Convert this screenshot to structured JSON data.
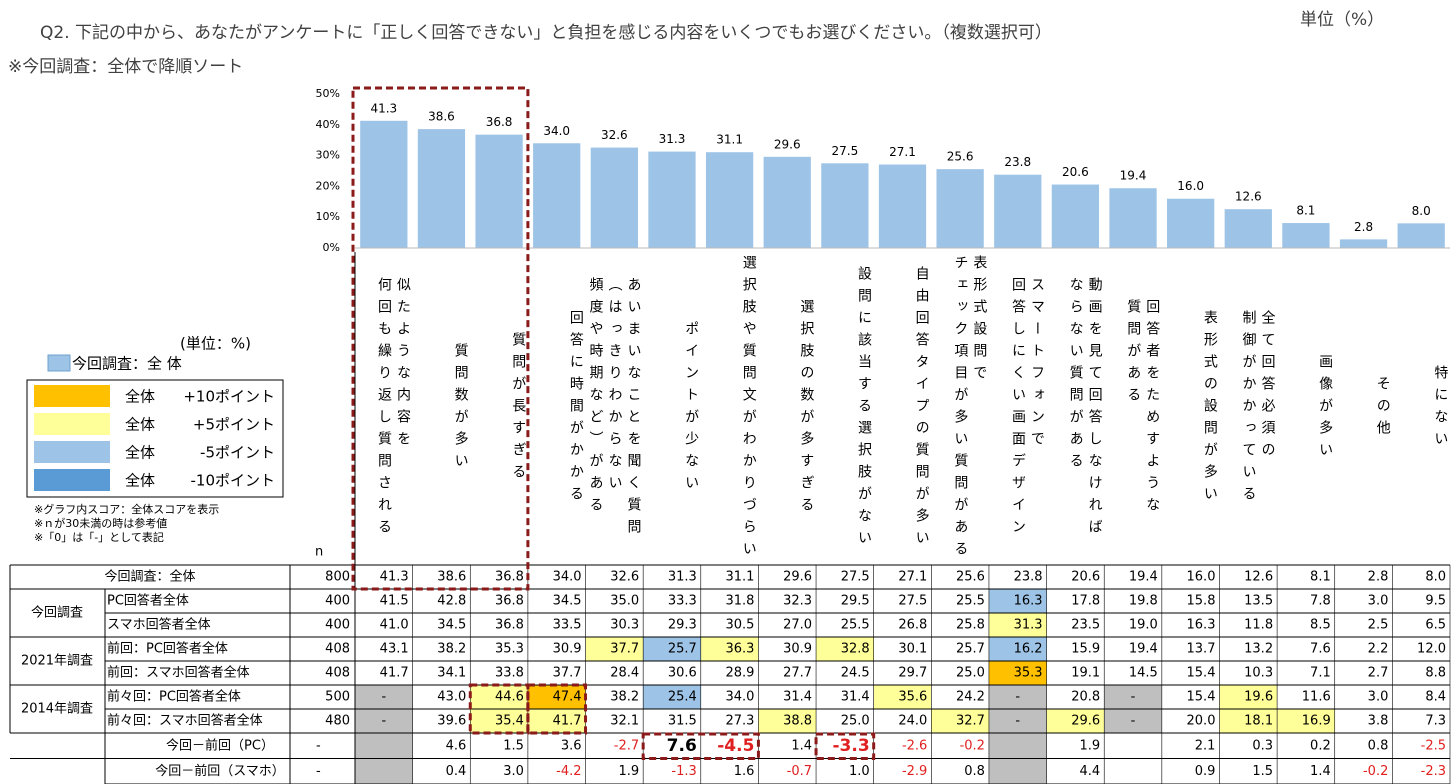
{
  "header": {
    "question": "Q2.  下記の中から、あなたがアンケートに「正しく回答できない」と負担を感じる内容をいくつでもお選びください。（複数選択可）",
    "sort_note": "※今回調査：全体で降順ソート",
    "unit": "単位（%）"
  },
  "chart_data": {
    "type": "bar",
    "color": "#9dc3e6",
    "categories": [
      "似たような内容を\n何回も繰り返し質問される",
      "質問数が多い",
      "質問が長すぎる",
      "回答に時間がかかる",
      "あいまいなことを聞く質問\n（はっきりわからない\n頻度や時期など）がある",
      "ポイントが少ない",
      "選択肢や質問文がわかりづらい",
      "選択肢の数が多すぎる",
      "設問に該当する選択肢がない",
      "自由回答タイプの質問が多い",
      "表形式設問で\nチェック項目が多い質問がある",
      "スマートフォンで\n回答しにくい画面デザイン",
      "動画を見て回答しなければ\nならない質問がある",
      "回答者をためすような\n質問がある",
      "表形式の設問が多い",
      "全て回答必須の\n制御がかかっている",
      "画像が多い",
      "その他",
      "特にない"
    ],
    "values": [
      41.3,
      38.6,
      36.8,
      34.0,
      32.6,
      31.3,
      31.1,
      29.6,
      27.5,
      27.1,
      25.6,
      23.8,
      20.6,
      19.4,
      16.0,
      12.6,
      8.1,
      2.8,
      8.0
    ],
    "value_labels": [
      "41.3",
      "38.6",
      "36.8",
      "34.0",
      "32.6",
      "31.3",
      "31.1",
      "29.6",
      "27.5",
      "27.1",
      "25.6",
      "23.8",
      "20.6",
      "19.4",
      "16.0",
      "12.6",
      "8.1",
      "2.8",
      "8.0"
    ],
    "ylim": [
      0,
      50
    ],
    "yticks": [
      {
        "value": 0,
        "label": "0%"
      },
      {
        "value": 10,
        "label": "10%"
      },
      {
        "value": 20,
        "label": "20%"
      },
      {
        "value": 30,
        "label": "30%"
      },
      {
        "value": 40,
        "label": "40%"
      },
      {
        "value": 50,
        "label": "50%"
      }
    ]
  },
  "legend": {
    "unit": "(単位：%)",
    "series_label": "今回調査：全 体",
    "items": [
      {
        "label": "全体",
        "points": "+10ポイント",
        "color": "#ffc000"
      },
      {
        "label": "全体",
        "points": "+5ポイント",
        "color": "#ffff99"
      },
      {
        "label": "全体",
        "points": "-5ポイント",
        "color": "#9dc3e6"
      },
      {
        "label": "全体",
        "points": "-10ポイント",
        "color": "#5b9bd5"
      }
    ],
    "notes": [
      "※グラフ内スコア：全体スコアを表示",
      "※ｎが30未満の時は参考値",
      "※「0」は「-」として表記"
    ]
  },
  "table": {
    "n_header": "n",
    "groups": [
      "今回調査",
      "2021年調査",
      "2014年調査"
    ],
    "rows": [
      {
        "label": "今回調査：全体",
        "n": "800",
        "cells": [
          "41.3",
          "38.6",
          "36.8",
          "34.0",
          "32.6",
          "31.3",
          "31.1",
          "29.6",
          "27.5",
          "27.1",
          "25.6",
          "23.8",
          "20.6",
          "19.4",
          "16.0",
          "12.6",
          "8.1",
          "2.8",
          "8.0"
        ],
        "fills": [
          null,
          null,
          null,
          null,
          null,
          null,
          null,
          null,
          null,
          null,
          null,
          null,
          null,
          null,
          null,
          null,
          null,
          null,
          null
        ]
      },
      {
        "label": "PC回答者全体",
        "n": "400",
        "cells": [
          "41.5",
          "42.8",
          "36.8",
          "34.5",
          "35.0",
          "33.3",
          "31.8",
          "32.3",
          "29.5",
          "27.5",
          "25.5",
          "16.3",
          "17.8",
          "19.8",
          "15.8",
          "13.5",
          "7.8",
          "3.0",
          "9.5"
        ],
        "fills": [
          null,
          null,
          null,
          null,
          null,
          null,
          null,
          null,
          null,
          null,
          null,
          "#9dc3e6",
          null,
          null,
          null,
          null,
          null,
          null,
          null
        ]
      },
      {
        "label": "スマホ回答者全体",
        "n": "400",
        "cells": [
          "41.0",
          "34.5",
          "36.8",
          "33.5",
          "30.3",
          "29.3",
          "30.5",
          "27.0",
          "25.5",
          "26.8",
          "25.8",
          "31.3",
          "23.5",
          "19.0",
          "16.3",
          "11.8",
          "8.5",
          "2.5",
          "6.5"
        ],
        "fills": [
          null,
          null,
          null,
          null,
          null,
          null,
          null,
          null,
          null,
          null,
          null,
          "#ffff99",
          null,
          null,
          null,
          null,
          null,
          null,
          null
        ]
      },
      {
        "label": "前回：PC回答者全体",
        "n": "408",
        "cells": [
          "43.1",
          "38.2",
          "35.3",
          "30.9",
          "37.7",
          "25.7",
          "36.3",
          "30.9",
          "32.8",
          "30.1",
          "25.7",
          "16.2",
          "15.9",
          "19.4",
          "13.7",
          "13.2",
          "7.6",
          "2.2",
          "12.0"
        ],
        "fills": [
          null,
          null,
          null,
          null,
          "#ffff99",
          "#9dc3e6",
          "#ffff99",
          null,
          "#ffff99",
          null,
          null,
          "#9dc3e6",
          null,
          null,
          null,
          null,
          null,
          null,
          null
        ]
      },
      {
        "label": "前回：スマホ回答者全体",
        "n": "408",
        "cells": [
          "41.7",
          "34.1",
          "33.8",
          "37.7",
          "28.4",
          "30.6",
          "28.9",
          "27.7",
          "24.5",
          "29.7",
          "25.0",
          "35.3",
          "19.1",
          "14.5",
          "15.4",
          "10.3",
          "7.1",
          "2.7",
          "8.8"
        ],
        "fills": [
          null,
          null,
          null,
          null,
          null,
          null,
          null,
          null,
          null,
          null,
          null,
          "#ffc000",
          null,
          null,
          null,
          null,
          null,
          null,
          null
        ]
      },
      {
        "label": "前々回：PC回答者全体",
        "n": "500",
        "cells": [
          "-",
          "43.0",
          "44.6",
          "47.4",
          "38.2",
          "25.4",
          "34.0",
          "31.4",
          "31.4",
          "35.6",
          "24.2",
          "-",
          "20.8",
          "-",
          "15.4",
          "19.6",
          "11.6",
          "3.0",
          "8.4"
        ],
        "fills": [
          "#bfbfbf",
          null,
          "#ffff99",
          "#ffc000",
          null,
          "#9dc3e6",
          null,
          null,
          null,
          "#ffff99",
          null,
          "#bfbfbf",
          null,
          "#bfbfbf",
          null,
          "#ffff99",
          null,
          null,
          null
        ]
      },
      {
        "label": "前々回：スマホ回答者全体",
        "n": "480",
        "cells": [
          "-",
          "39.6",
          "35.4",
          "41.7",
          "32.1",
          "31.5",
          "27.3",
          "38.8",
          "25.0",
          "24.0",
          "32.7",
          "-",
          "29.6",
          "-",
          "20.0",
          "18.1",
          "16.9",
          "3.8",
          "7.3"
        ],
        "fills": [
          "#bfbfbf",
          null,
          "#ffff99",
          "#ffff99",
          null,
          null,
          null,
          "#ffff99",
          null,
          null,
          "#ffff99",
          "#bfbfbf",
          "#ffff99",
          "#bfbfbf",
          null,
          "#ffff99",
          "#ffff99",
          null,
          null
        ]
      },
      {
        "label": "今回－前回（PC）",
        "n": "-",
        "cells": [
          null,
          "4.6",
          "1.5",
          "3.6",
          "-2.7",
          "7.6",
          "-4.5",
          "1.4",
          "-3.3",
          "-2.6",
          "-0.2",
          null,
          "1.9",
          null,
          "2.1",
          "0.3",
          "0.2",
          "0.8",
          "-2.5"
        ],
        "fills": [
          "#bfbfbf",
          null,
          null,
          null,
          null,
          null,
          null,
          null,
          null,
          null,
          null,
          "#bfbfbf",
          null,
          null,
          null,
          null,
          null,
          null,
          null
        ],
        "emphasis": [
          5,
          6,
          8
        ]
      },
      {
        "label": "今回－前回（スマホ）",
        "n": "-",
        "cells": [
          null,
          "0.4",
          "3.0",
          "-4.2",
          "1.9",
          "-1.3",
          "1.6",
          "-0.7",
          "1.0",
          "-2.9",
          "0.8",
          null,
          "4.4",
          null,
          "0.9",
          "1.5",
          "1.4",
          "-0.2",
          "-2.3"
        ],
        "fills": [
          "#bfbfbf",
          null,
          null,
          null,
          null,
          null,
          null,
          null,
          null,
          null,
          null,
          "#bfbfbf",
          null,
          null,
          null,
          null,
          null,
          null,
          null
        ]
      }
    ]
  }
}
